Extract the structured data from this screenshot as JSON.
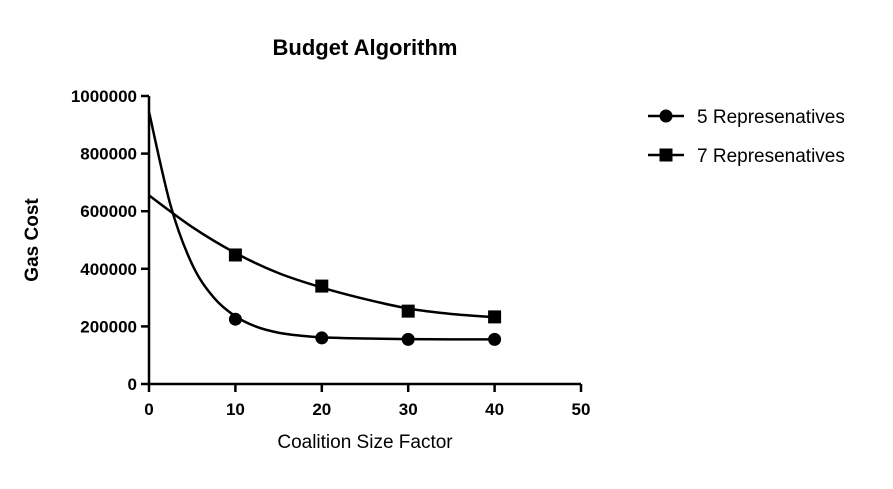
{
  "chart_data": {
    "type": "scatter",
    "title": "Budget Algorithm",
    "xlabel": "Coalition Size Factor",
    "ylabel": "Gas Cost",
    "xlim": [
      0,
      50
    ],
    "ylim": [
      0,
      1000000
    ],
    "x_ticks": [
      0,
      10,
      20,
      30,
      40,
      50
    ],
    "x_tick_labels": [
      "0",
      "10",
      "20",
      "30",
      "40",
      "50"
    ],
    "y_ticks": [
      0,
      200000,
      400000,
      600000,
      800000,
      1000000
    ],
    "y_tick_labels": [
      "0",
      "200000",
      "400000",
      "600000",
      "800000",
      "1000000"
    ],
    "grid": false,
    "legend_position": "top-right, outside plot",
    "fit_curve": "one-phase exponential decay",
    "series": [
      {
        "name": "5 Represenatives",
        "marker": "circle",
        "color": "#000000",
        "x": [
          10,
          20,
          30,
          40
        ],
        "y": [
          225000,
          160000,
          155000,
          155000
        ],
        "fit": [
          [
            0,
            945000
          ],
          [
            2.5,
            620000
          ],
          [
            5,
            415000
          ],
          [
            7.5,
            300000
          ],
          [
            10,
            235000
          ],
          [
            12.5,
            198000
          ],
          [
            15,
            178000
          ],
          [
            17.5,
            168000
          ],
          [
            20,
            162000
          ],
          [
            25,
            158000
          ],
          [
            30,
            156000
          ],
          [
            35,
            155000
          ],
          [
            40,
            155000
          ]
        ]
      },
      {
        "name": "7 Represenatives",
        "marker": "square",
        "color": "#000000",
        "x": [
          10,
          20,
          30,
          40
        ],
        "y": [
          448000,
          340000,
          253000,
          233000
        ],
        "fit": [
          [
            0,
            655000
          ],
          [
            5,
            545000
          ],
          [
            10,
            455000
          ],
          [
            15,
            385000
          ],
          [
            20,
            335000
          ],
          [
            25,
            295000
          ],
          [
            30,
            262000
          ],
          [
            35,
            243000
          ],
          [
            40,
            232000
          ]
        ]
      }
    ]
  }
}
